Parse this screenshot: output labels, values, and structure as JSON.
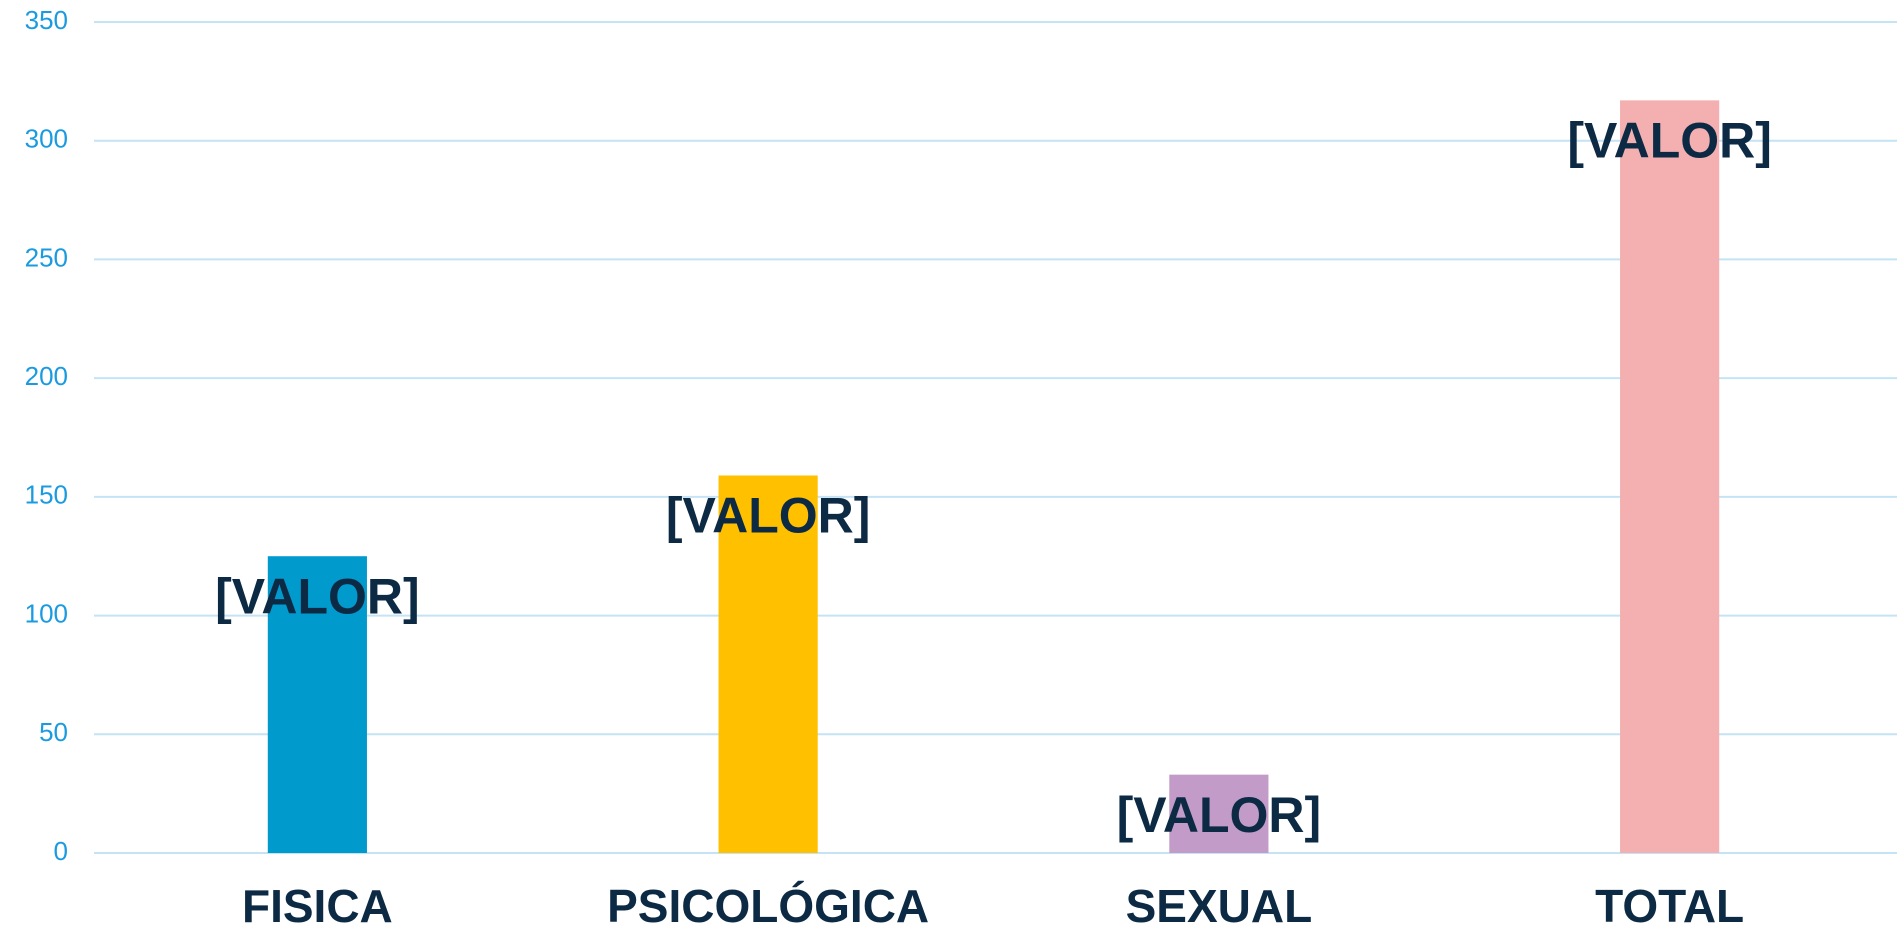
{
  "chart_data": {
    "type": "bar",
    "categories": [
      "FISICA",
      "PSICOLÓGICA",
      "SEXUAL",
      "TOTAL"
    ],
    "values": [
      125,
      159,
      33,
      317
    ],
    "value_labels": [
      "[VALOR]",
      "[VALOR]",
      "[VALOR]",
      "[VALOR]"
    ],
    "colors": [
      "#009acd",
      "#ffc000",
      "#c39bc8",
      "#f4b0b0"
    ],
    "ylim": [
      0,
      350
    ],
    "yticks": [
      0,
      50,
      100,
      150,
      200,
      250,
      300,
      350
    ],
    "grid": true
  }
}
